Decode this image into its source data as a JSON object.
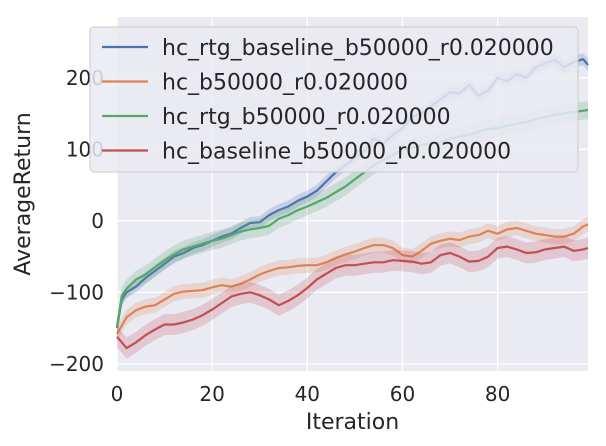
{
  "chart_data": {
    "type": "line",
    "title": "",
    "xlabel": "Iteration",
    "ylabel": "AverageReturn",
    "xlim": [
      0,
      99
    ],
    "ylim": [
      -210,
      285
    ],
    "xticks": [
      0,
      20,
      40,
      60,
      80
    ],
    "yticks": [
      -200,
      -100,
      0,
      100,
      200
    ],
    "xtick_labels": [
      "0",
      "20",
      "40",
      "60",
      "80"
    ],
    "ytick_labels": [
      "−200",
      "−100",
      "0",
      "100",
      "200"
    ],
    "grid": true,
    "legend_position": "top-left",
    "background": "#eaeaf2",
    "series": [
      {
        "name": "hc_rtg_baseline_b50000_r0.020000",
        "color": "#4c72b0",
        "x": [
          0,
          1,
          2,
          4,
          6,
          8,
          10,
          12,
          14,
          16,
          18,
          20,
          22,
          24,
          26,
          28,
          30,
          32,
          34,
          36,
          38,
          40,
          42,
          44,
          46,
          48,
          50,
          52,
          54,
          56,
          58,
          60,
          62,
          64,
          66,
          68,
          70,
          72,
          74,
          76,
          78,
          80,
          82,
          84,
          86,
          88,
          90,
          92,
          94,
          96,
          98,
          99
        ],
        "y": [
          -150,
          -110,
          -100,
          -92,
          -80,
          -70,
          -60,
          -50,
          -45,
          -38,
          -34,
          -28,
          -22,
          -18,
          -10,
          -3,
          -2,
          8,
          15,
          20,
          28,
          34,
          42,
          55,
          68,
          78,
          88,
          98,
          115,
          108,
          120,
          130,
          145,
          150,
          160,
          170,
          180,
          178,
          190,
          175,
          182,
          200,
          195,
          205,
          200,
          215,
          220,
          225,
          215,
          222,
          226,
          218
        ]
      },
      {
        "name": "hc_b50000_r0.020000",
        "color": "#dd8452",
        "x": [
          0,
          2,
          4,
          6,
          8,
          10,
          12,
          14,
          16,
          18,
          20,
          22,
          24,
          26,
          28,
          30,
          32,
          34,
          36,
          38,
          40,
          42,
          44,
          46,
          48,
          50,
          52,
          54,
          56,
          58,
          60,
          62,
          64,
          66,
          68,
          70,
          72,
          74,
          76,
          78,
          80,
          82,
          84,
          86,
          88,
          90,
          92,
          94,
          96,
          98,
          99
        ],
        "y": [
          -158,
          -135,
          -125,
          -120,
          -118,
          -110,
          -102,
          -99,
          -98,
          -97,
          -93,
          -90,
          -92,
          -88,
          -82,
          -75,
          -70,
          -66,
          -65,
          -63,
          -62,
          -62,
          -58,
          -52,
          -47,
          -43,
          -38,
          -34,
          -34,
          -38,
          -48,
          -50,
          -42,
          -32,
          -28,
          -25,
          -27,
          -22,
          -20,
          -14,
          -18,
          -12,
          -10,
          -14,
          -18,
          -20,
          -22,
          -22,
          -18,
          -8,
          -5
        ]
      },
      {
        "name": "hc_rtg_b50000_r0.020000",
        "color": "#55a868",
        "x": [
          0,
          1,
          2,
          4,
          6,
          8,
          10,
          12,
          14,
          16,
          18,
          20,
          22,
          24,
          26,
          28,
          30,
          32,
          34,
          36,
          38,
          40,
          42,
          44,
          46,
          48,
          50,
          52,
          54,
          56,
          58,
          60,
          62,
          64,
          66,
          68,
          70,
          72,
          74,
          76,
          78,
          80,
          82,
          84,
          86,
          88,
          90,
          92,
          94,
          96,
          98,
          99
        ],
        "y": [
          -148,
          -105,
          -95,
          -82,
          -75,
          -65,
          -55,
          -47,
          -40,
          -36,
          -32,
          -28,
          -25,
          -20,
          -15,
          -12,
          -10,
          -7,
          3,
          8,
          15,
          20,
          26,
          32,
          40,
          48,
          58,
          68,
          78,
          85,
          92,
          100,
          102,
          106,
          108,
          110,
          115,
          118,
          120,
          125,
          128,
          130,
          133,
          136,
          138,
          142,
          145,
          148,
          150,
          152,
          154,
          155
        ]
      },
      {
        "name": "hc_baseline_b50000_r0.020000",
        "color": "#c44e52",
        "x": [
          0,
          2,
          4,
          6,
          8,
          10,
          12,
          14,
          16,
          18,
          20,
          22,
          24,
          26,
          28,
          30,
          32,
          34,
          36,
          38,
          40,
          42,
          44,
          46,
          48,
          50,
          52,
          54,
          56,
          58,
          60,
          62,
          64,
          66,
          68,
          70,
          72,
          74,
          76,
          78,
          80,
          82,
          84,
          86,
          88,
          90,
          92,
          94,
          96,
          98,
          99
        ],
        "y": [
          -162,
          -178,
          -170,
          -160,
          -152,
          -145,
          -145,
          -142,
          -138,
          -132,
          -124,
          -115,
          -106,
          -102,
          -100,
          -104,
          -110,
          -118,
          -112,
          -104,
          -94,
          -82,
          -74,
          -66,
          -62,
          -62,
          -60,
          -58,
          -58,
          -55,
          -56,
          -57,
          -60,
          -58,
          -48,
          -45,
          -50,
          -57,
          -56,
          -50,
          -38,
          -36,
          -40,
          -45,
          -44,
          -40,
          -38,
          -36,
          -42,
          -40,
          -38
        ]
      }
    ]
  }
}
